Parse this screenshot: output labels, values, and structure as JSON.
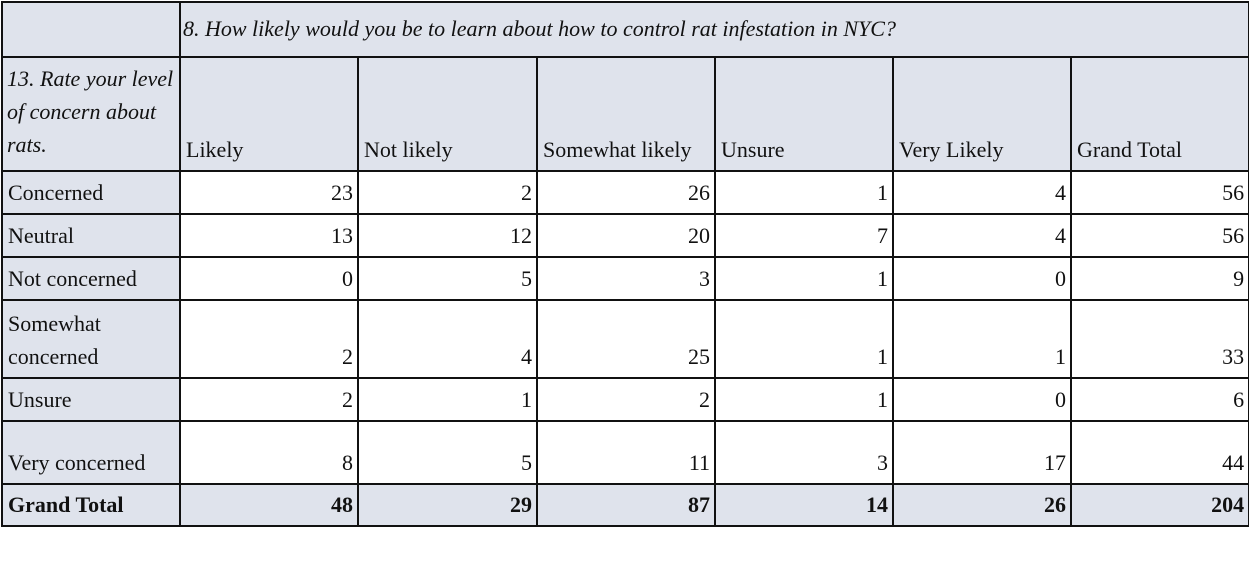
{
  "question_8": "8. How likely would you be to learn about how to control rat infestation in NYC?",
  "question_13": "13. Rate your level of concern about rats.",
  "columns": [
    "Likely",
    "Not likely",
    "Somewhat likely",
    "Unsure",
    "Very Likely",
    "Grand Total"
  ],
  "rows": [
    {
      "label": "Concerned",
      "values": [
        "23",
        "2",
        "26",
        "1",
        "4",
        "56"
      ]
    },
    {
      "label": "Neutral",
      "values": [
        "13",
        "12",
        "20",
        "7",
        "4",
        "56"
      ]
    },
    {
      "label": "Not concerned",
      "values": [
        "0",
        "5",
        "3",
        "1",
        "0",
        "9"
      ]
    },
    {
      "label": "Somewhat concerned",
      "values": [
        "2",
        "4",
        "25",
        "1",
        "1",
        "33"
      ]
    },
    {
      "label": "Unsure",
      "values": [
        "2",
        "1",
        "2",
        "1",
        "0",
        "6"
      ]
    },
    {
      "label": "Very concerned",
      "values": [
        "8",
        "5",
        "11",
        "3",
        "17",
        "44"
      ]
    }
  ],
  "grand_total": {
    "label": "Grand Total",
    "values": [
      "48",
      "29",
      "87",
      "14",
      "26",
      "204"
    ]
  },
  "colors": {
    "header_fill": "#dfe3ec",
    "border": "#111111"
  }
}
